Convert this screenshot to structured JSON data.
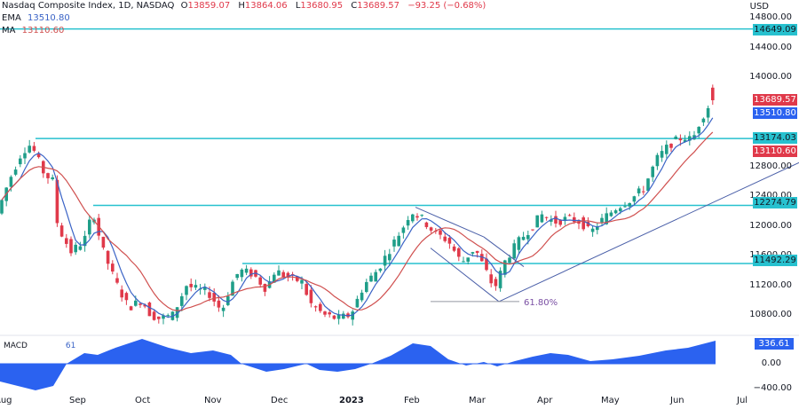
{
  "header": {
    "symbol": "Nasdaq Composite Index, 1D, NASDAQ",
    "ohlc": [
      {
        "label": "O",
        "value": "13859.07"
      },
      {
        "label": "H",
        "value": "13864.06"
      },
      {
        "label": "L",
        "value": "13680.95"
      },
      {
        "label": "C",
        "value": "13689.57"
      }
    ],
    "change": "−93.25 (−0.68%)",
    "ema_label": "EMA",
    "ema_value": "13510.80",
    "ma_label": "MA",
    "ma_value": "13110.60"
  },
  "price_axis": {
    "currency": "USD",
    "ticks": [
      "14800.00",
      "14400.00",
      "14000.00",
      "12800.00",
      "12400.00",
      "12000.00",
      "11600.00",
      "11200.00",
      "10800.00"
    ]
  },
  "tags": [
    {
      "value": "14649.09",
      "color": "#27c1cf",
      "text_color": "#131722"
    },
    {
      "value": "13689.57",
      "color": "#e0394a",
      "text_color": "#ffffff"
    },
    {
      "value": "13510.80",
      "color": "#2b62f0",
      "text_color": "#ffffff"
    },
    {
      "value": "13174.03",
      "color": "#27c1cf",
      "text_color": "#131722"
    },
    {
      "value": "13110.60",
      "color": "#e0394a",
      "text_color": "#ffffff"
    },
    {
      "value": "12274.79",
      "color": "#27c1cf",
      "text_color": "#131722"
    },
    {
      "value": "11492.29",
      "color": "#27c1cf",
      "text_color": "#131722"
    }
  ],
  "macd": {
    "label": "MACD",
    "value_partial": "61",
    "tag": "336.61",
    "ticks": [
      "0.00",
      "−400.00"
    ]
  },
  "annotation": {
    "fib_label": "61.80%"
  },
  "time_axis": [
    "Aug",
    "Sep",
    "Oct",
    "Nov",
    "Dec",
    "2023",
    "Feb",
    "Mar",
    "Apr",
    "May",
    "Jun",
    "Jul"
  ],
  "colors": {
    "up": "#1f9e89",
    "down": "#e0394a",
    "ema": "#3a63c6",
    "ma": "#d0504f",
    "level": "#27c1cf",
    "trend": "#4a5fa8",
    "macd_fill": "#2b62f0"
  },
  "chart_data": {
    "type": "candlestick",
    "title": "Nasdaq Composite Index, 1D, NASDAQ",
    "ylabel": "USD",
    "ylim": [
      10600,
      14900
    ],
    "x_labels": [
      "Aug",
      "Sep",
      "Oct",
      "Nov",
      "Dec",
      "2023",
      "Feb",
      "Mar",
      "Apr",
      "May",
      "Jun",
      "Jul"
    ],
    "horizontal_levels": [
      14649.09,
      13174.03,
      12274.79,
      11492.29
    ],
    "last": {
      "open": 13859.07,
      "high": 13864.06,
      "low": 13680.95,
      "close": 13689.57,
      "change": -93.25,
      "change_pct": -0.68
    },
    "ema": 13510.8,
    "ma": 13110.6,
    "fib_retracement": {
      "level": "61.80%",
      "price": 10980
    },
    "monthly_approx_close": [
      {
        "month": "Aug",
        "value": 12400
      },
      {
        "month": "Sep",
        "value": 11600
      },
      {
        "month": "Oct",
        "value": 10900
      },
      {
        "month": "Nov",
        "value": 11350
      },
      {
        "month": "Dec",
        "value": 10750
      },
      {
        "month": "Jan",
        "value": 11600
      },
      {
        "month": "Feb",
        "value": 11450
      },
      {
        "month": "Mar",
        "value": 12200
      },
      {
        "month": "Apr",
        "value": 12250
      },
      {
        "month": "May",
        "value": 13000
      },
      {
        "month": "Jun",
        "value": 13690
      }
    ],
    "macd_series": {
      "name": "MACD",
      "last": 336.61,
      "range": [
        -500,
        450
      ]
    }
  }
}
